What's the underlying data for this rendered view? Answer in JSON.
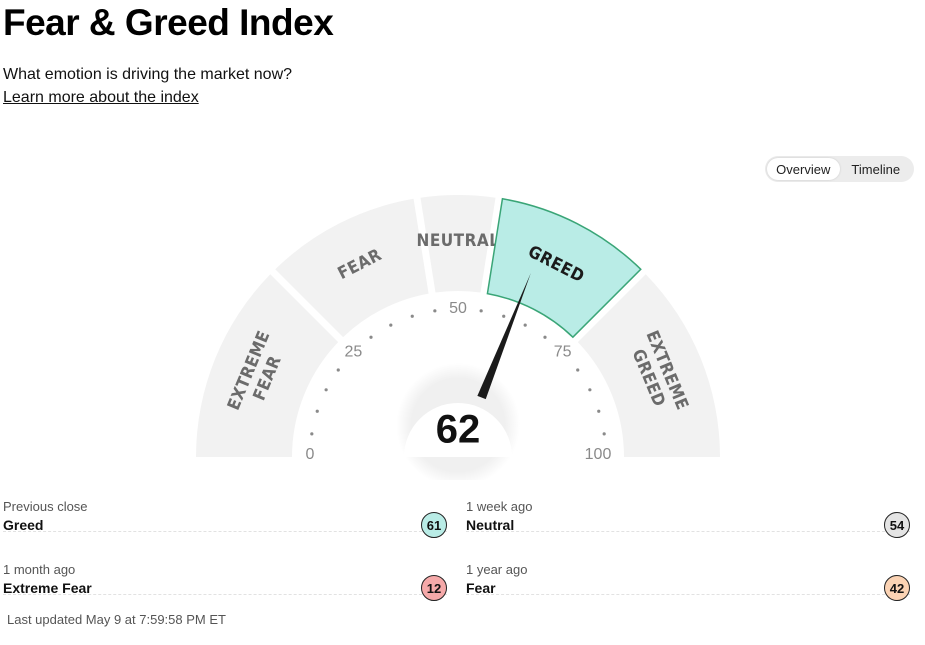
{
  "header": {
    "title": "Fear & Greed Index",
    "subtitle": "What emotion is driving the market now?",
    "learn_more": "Learn more about the index"
  },
  "view_toggle": {
    "options": [
      "Overview",
      "Timeline"
    ],
    "selected": "Overview"
  },
  "gauge": {
    "score": 62,
    "current_rating": "Greed",
    "segments": [
      {
        "lines": [
          "EXTREME",
          "FEAR"
        ],
        "from": 0,
        "to": 25
      },
      {
        "lines": [
          "FEAR"
        ],
        "from": 25,
        "to": 45
      },
      {
        "lines": [
          "NEUTRAL"
        ],
        "from": 45,
        "to": 55
      },
      {
        "lines": [
          "GREED"
        ],
        "from": 55,
        "to": 75
      },
      {
        "lines": [
          "EXTREME",
          "GREED"
        ],
        "from": 75,
        "to": 100
      }
    ],
    "ticks": [
      "0",
      "25",
      "50",
      "75",
      "100"
    ],
    "colors": {
      "segment_bg": "#f2f2f2",
      "active_fill": "#b9ece6",
      "active_stroke": "#3aa577",
      "needle": "#1b1b1b"
    }
  },
  "history": [
    {
      "label": "Previous close",
      "rating": "Greed",
      "value": 61,
      "color": "#b9ece6"
    },
    {
      "label": "1 week ago",
      "rating": "Neutral",
      "value": 54,
      "color": "#e4e4e4"
    },
    {
      "label": "1 month ago",
      "rating": "Extreme Fear",
      "value": 12,
      "color": "#f5a9a9"
    },
    {
      "label": "1 year ago",
      "rating": "Fear",
      "value": 42,
      "color": "#fbd3b4"
    }
  ],
  "last_updated": "Last updated May 9 at 7:59:58 PM ET"
}
